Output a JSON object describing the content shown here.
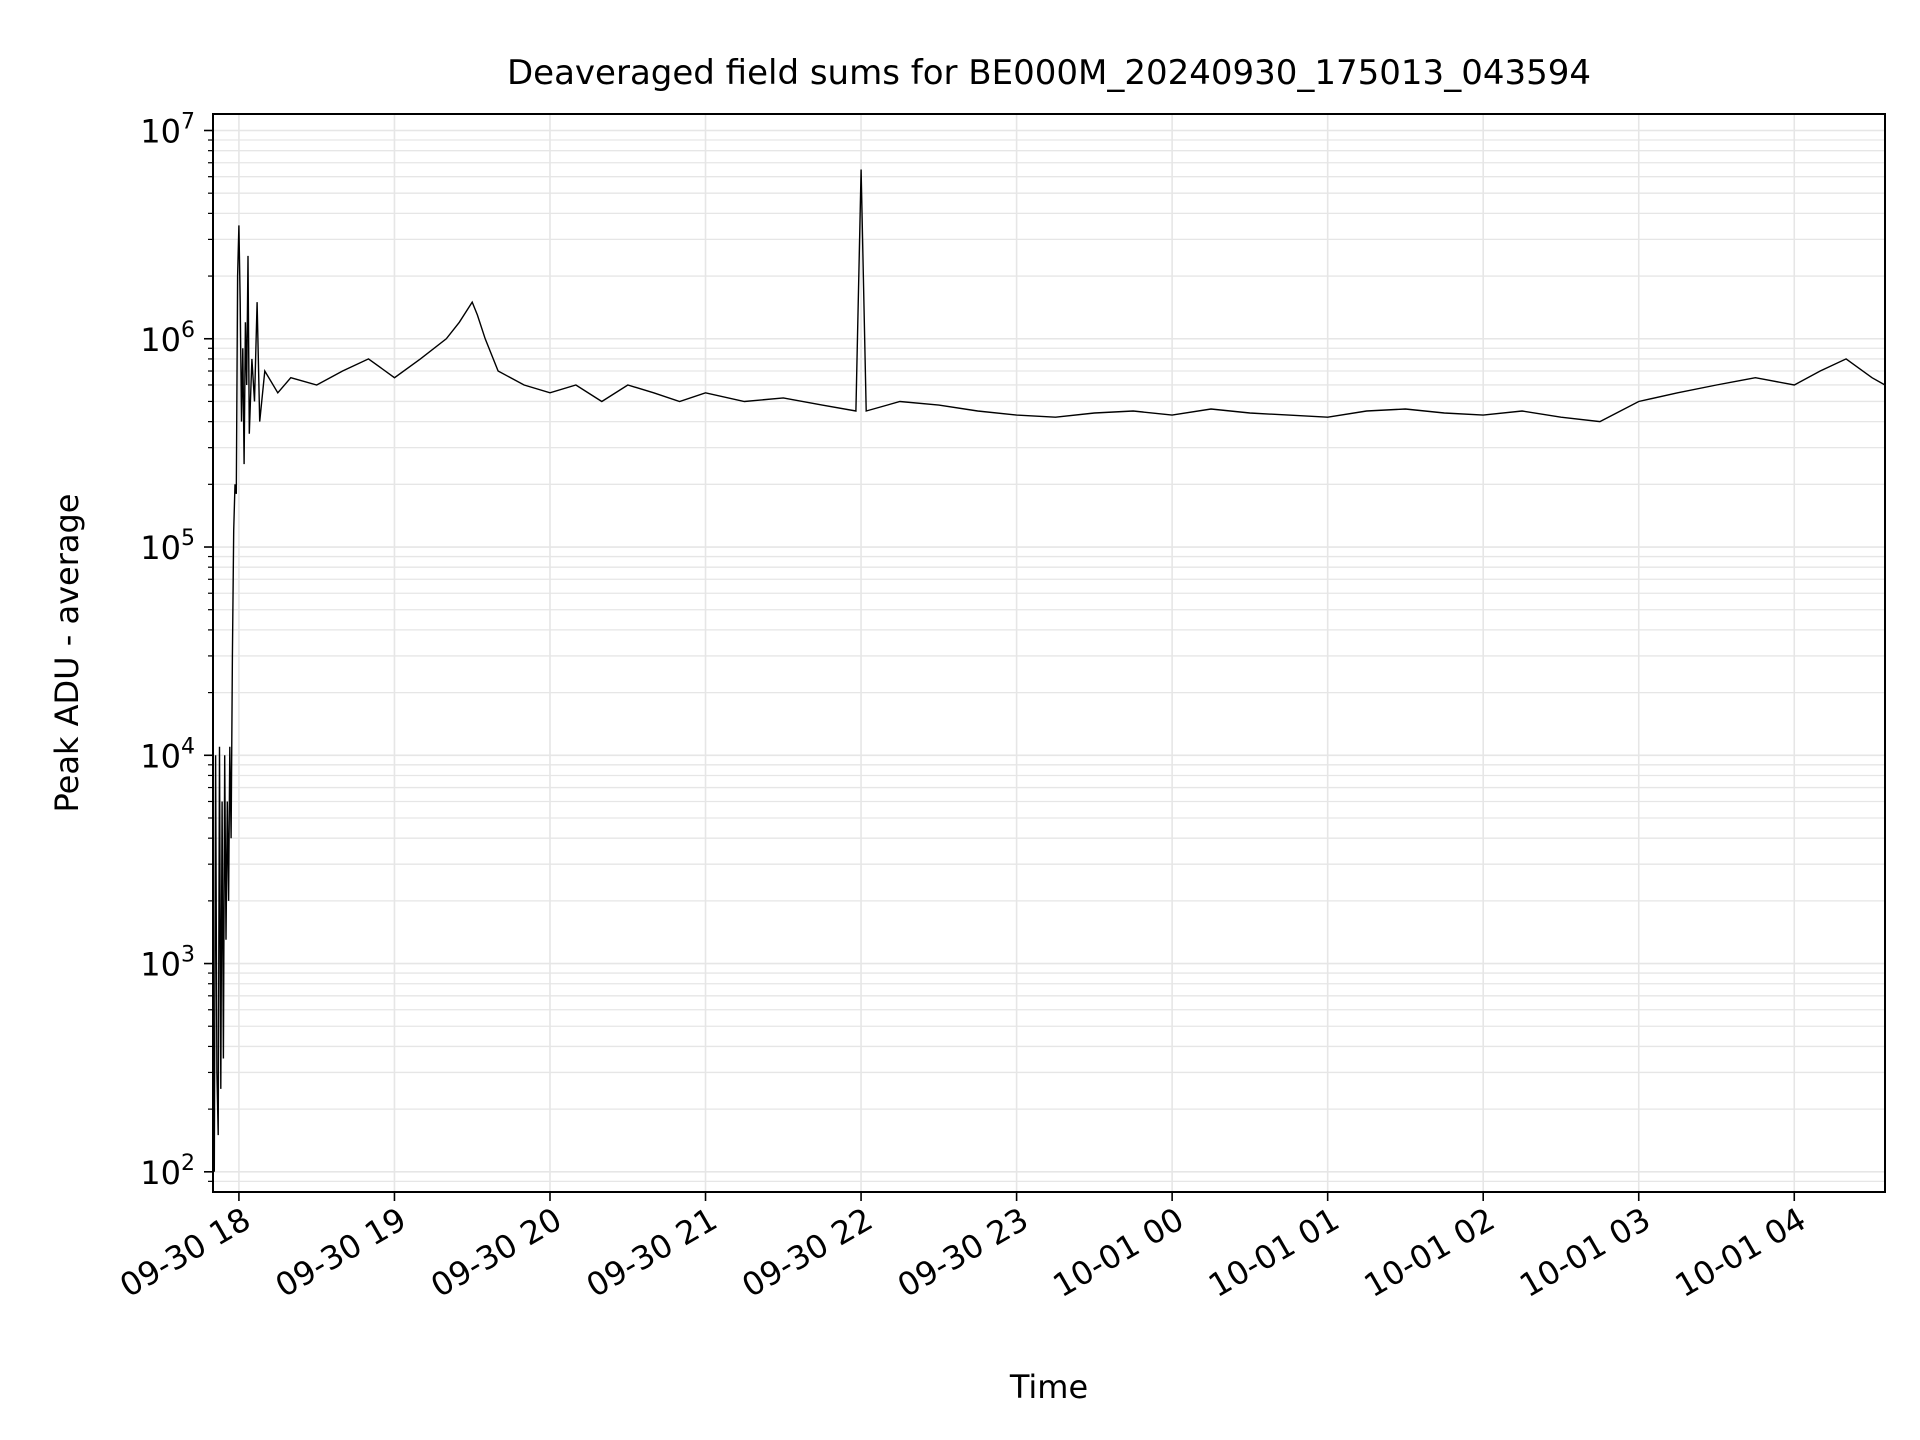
{
  "chart_data": {
    "type": "line",
    "title": "Deaveraged field sums for BE000M_20240930_175013_043594",
    "xlabel": "Time",
    "ylabel": "Peak ADU - average",
    "yscale": "log",
    "ylim": [
      80,
      12000000
    ],
    "xlim": [
      "2024-09-30T17:50:00",
      "2024-10-01T04:35:00"
    ],
    "grid": true,
    "line_color": "#000000",
    "grid_color": "#e6e6e6",
    "x_ticks": [
      {
        "value": "2024-09-30T18:00:00",
        "label": "09-30 18"
      },
      {
        "value": "2024-09-30T19:00:00",
        "label": "09-30 19"
      },
      {
        "value": "2024-09-30T20:00:00",
        "label": "09-30 20"
      },
      {
        "value": "2024-09-30T21:00:00",
        "label": "09-30 21"
      },
      {
        "value": "2024-09-30T22:00:00",
        "label": "09-30 22"
      },
      {
        "value": "2024-09-30T23:00:00",
        "label": "09-30 23"
      },
      {
        "value": "2024-10-01T00:00:00",
        "label": "10-01 00"
      },
      {
        "value": "2024-10-01T01:00:00",
        "label": "10-01 01"
      },
      {
        "value": "2024-10-01T02:00:00",
        "label": "10-01 02"
      },
      {
        "value": "2024-10-01T03:00:00",
        "label": "10-01 03"
      },
      {
        "value": "2024-10-01T04:00:00",
        "label": "10-01 04"
      }
    ],
    "y_ticks": [
      {
        "value": 100,
        "base": "10",
        "exp": "2"
      },
      {
        "value": 1000,
        "base": "10",
        "exp": "3"
      },
      {
        "value": 10000,
        "base": "10",
        "exp": "4"
      },
      {
        "value": 100000,
        "base": "10",
        "exp": "5"
      },
      {
        "value": 1000000,
        "base": "10",
        "exp": "6"
      },
      {
        "value": 10000000,
        "base": "10",
        "exp": "7"
      }
    ],
    "series": [
      {
        "x": [
          "2024-09-30T17:50:30",
          "2024-09-30T17:51:00",
          "2024-09-30T17:51:30",
          "2024-09-30T17:52:00",
          "2024-09-30T17:52:30",
          "2024-09-30T17:53:00",
          "2024-09-30T17:53:30",
          "2024-09-30T17:54:00",
          "2024-09-30T17:54:30",
          "2024-09-30T17:55:00",
          "2024-09-30T17:55:30",
          "2024-09-30T17:56:00",
          "2024-09-30T17:56:30",
          "2024-09-30T17:57:00",
          "2024-09-30T17:57:30",
          "2024-09-30T17:58:00",
          "2024-09-30T17:58:30",
          "2024-09-30T17:59:00",
          "2024-09-30T17:59:30",
          "2024-09-30T18:00:00",
          "2024-09-30T18:00:30",
          "2024-09-30T18:01:00",
          "2024-09-30T18:01:30",
          "2024-09-30T18:02:00",
          "2024-09-30T18:02:30",
          "2024-09-30T18:03:00",
          "2024-09-30T18:03:30",
          "2024-09-30T18:04:00",
          "2024-09-30T18:05:00",
          "2024-09-30T18:06:00",
          "2024-09-30T18:07:00",
          "2024-09-30T18:08:00",
          "2024-09-30T18:10:00",
          "2024-09-30T18:15:00",
          "2024-09-30T18:20:00",
          "2024-09-30T18:30:00",
          "2024-09-30T18:40:00",
          "2024-09-30T18:50:00",
          "2024-09-30T19:00:00",
          "2024-09-30T19:10:00",
          "2024-09-30T19:20:00",
          "2024-09-30T19:25:00",
          "2024-09-30T19:30:00",
          "2024-09-30T19:32:00",
          "2024-09-30T19:35:00",
          "2024-09-30T19:40:00",
          "2024-09-30T19:50:00",
          "2024-09-30T20:00:00",
          "2024-09-30T20:10:00",
          "2024-09-30T20:20:00",
          "2024-09-30T20:30:00",
          "2024-09-30T20:40:00",
          "2024-09-30T20:50:00",
          "2024-09-30T21:00:00",
          "2024-09-30T21:15:00",
          "2024-09-30T21:30:00",
          "2024-09-30T21:45:00",
          "2024-09-30T21:58:00",
          "2024-09-30T22:00:00",
          "2024-09-30T22:02:00",
          "2024-09-30T22:15:00",
          "2024-09-30T22:30:00",
          "2024-09-30T22:45:00",
          "2024-09-30T23:00:00",
          "2024-09-30T23:15:00",
          "2024-09-30T23:30:00",
          "2024-09-30T23:45:00",
          "2024-10-01T00:00:00",
          "2024-10-01T00:15:00",
          "2024-10-01T00:30:00",
          "2024-10-01T00:45:00",
          "2024-10-01T01:00:00",
          "2024-10-01T01:15:00",
          "2024-10-01T01:30:00",
          "2024-10-01T01:45:00",
          "2024-10-01T02:00:00",
          "2024-10-01T02:15:00",
          "2024-10-01T02:30:00",
          "2024-10-01T02:45:00",
          "2024-10-01T03:00:00",
          "2024-10-01T03:15:00",
          "2024-10-01T03:30:00",
          "2024-10-01T03:45:00",
          "2024-10-01T04:00:00",
          "2024-10-01T04:10:00",
          "2024-10-01T04:20:00",
          "2024-10-01T04:30:00",
          "2024-10-01T04:35:00"
        ],
        "values": [
          100,
          10000,
          300,
          150,
          11000,
          250,
          6000,
          350,
          10000,
          1300,
          6000,
          2000,
          11000,
          4000,
          30000,
          120000,
          200000,
          180000,
          2000000,
          3500000,
          1500000,
          400000,
          900000,
          250000,
          1200000,
          600000,
          2500000,
          350000,
          800000,
          500000,
          1500000,
          400000,
          700000,
          550000,
          650000,
          600000,
          700000,
          800000,
          650000,
          800000,
          1000000,
          1200000,
          1500000,
          1300000,
          1000000,
          700000,
          600000,
          550000,
          600000,
          500000,
          600000,
          550000,
          500000,
          550000,
          500000,
          520000,
          480000,
          450000,
          6500000,
          450000,
          500000,
          480000,
          450000,
          430000,
          420000,
          440000,
          450000,
          430000,
          460000,
          440000,
          430000,
          420000,
          450000,
          460000,
          440000,
          430000,
          450000,
          420000,
          400000,
          500000,
          550000,
          600000,
          650000,
          600000,
          700000,
          800000,
          650000,
          600000
        ]
      }
    ]
  }
}
